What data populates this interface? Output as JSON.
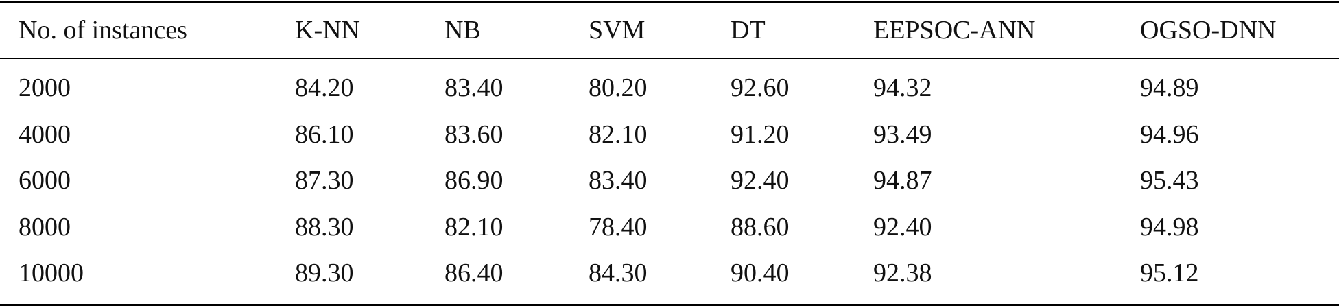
{
  "table": {
    "header": [
      "No. of instances",
      "K-NN",
      "NB",
      "SVM",
      "DT",
      "EEPSOC-ANN",
      "OGSO-DNN"
    ],
    "rows": [
      [
        "2000",
        "84.20",
        "83.40",
        "80.20",
        "92.60",
        "94.32",
        "94.89"
      ],
      [
        "4000",
        "86.10",
        "83.60",
        "82.10",
        "91.20",
        "93.49",
        "94.96"
      ],
      [
        "6000",
        "87.30",
        "86.90",
        "83.40",
        "92.40",
        "94.87",
        "95.43"
      ],
      [
        "8000",
        "88.30",
        "82.10",
        "78.40",
        "88.60",
        "92.40",
        "94.98"
      ],
      [
        "10000",
        "89.30",
        "86.40",
        "84.30",
        "90.40",
        "92.38",
        "95.12"
      ]
    ]
  }
}
